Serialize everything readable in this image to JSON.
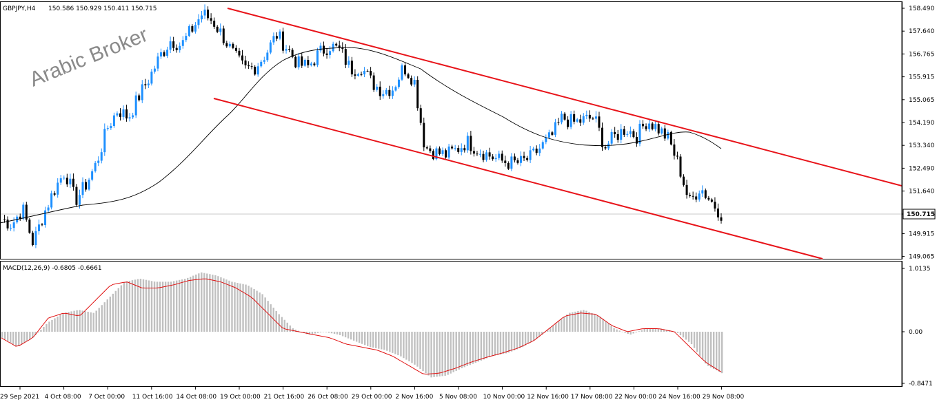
{
  "header": {
    "symbol": "GBPJPY,H4",
    "ohlc": "150.586 150.929 150.411 150.715"
  },
  "watermark": "Arabic Broker",
  "price_axis": {
    "labels": [
      "158.490",
      "157.640",
      "156.765",
      "155.915",
      "155.065",
      "154.190",
      "153.340",
      "152.490",
      "151.640",
      "150.715",
      "149.915",
      "149.065"
    ],
    "current_price": "150.715",
    "current_price_value": 150.715
  },
  "macd": {
    "label": "MACD(12,26,9) -0.6805 -0.6661",
    "axis_labels": [
      "1.0135",
      "0.00",
      "-0.8471"
    ]
  },
  "time_axis": {
    "labels": [
      "29 Sep 2021",
      "4 Oct 08:00",
      "7 Oct 00:00",
      "11 Oct 16:00",
      "14 Oct 08:00",
      "19 Oct 00:00",
      "21 Oct 16:00",
      "26 Oct 08:00",
      "29 Oct 00:00",
      "2 Nov 16:00",
      "5 Nov 08:00",
      "10 Nov 00:00",
      "12 Nov 16:00",
      "17 Nov 08:00",
      "22 Nov 00:00",
      "24 Nov 16:00",
      "29 Nov 08:00"
    ]
  },
  "colors": {
    "bull_candle": "#1e90ff",
    "bear_candle": "#000000",
    "channel": "#e8141a",
    "moving_average": "#000000",
    "histogram": "#c0c0c0",
    "signal": "#e01010",
    "grid_line": "#c8c8c8"
  },
  "chart_data": {
    "type": "candlestick",
    "price_range": [
      149.065,
      158.49
    ],
    "macd_range": [
      -0.8471,
      1.0135
    ],
    "path": [
      150.5,
      150.3,
      150.9,
      149.6,
      150.7,
      151.6,
      152.3,
      151.2,
      151.8,
      152.6,
      153.9,
      154.6,
      154.3,
      155.1,
      155.8,
      156.6,
      157.2,
      157.0,
      157.6,
      158.2,
      157.9,
      157.3,
      156.6,
      156.1,
      156.2,
      156.7,
      157.4,
      156.9,
      156.3,
      156.2,
      156.7,
      157.0,
      156.8,
      156.1,
      156.2,
      155.6,
      155.3,
      155.4,
      156.2,
      155.7,
      153.2,
      153.0,
      152.9,
      153.1,
      153.4,
      153.1,
      152.9,
      152.7,
      152.6,
      152.6,
      152.8,
      153.2,
      153.6,
      154.3,
      154.1,
      154.2,
      154.3,
      153.2,
      153.6,
      153.9,
      153.6,
      154.2,
      153.9,
      153.5,
      152.5,
      151.1,
      151.7,
      151.2,
      150.7
    ],
    "macd": [
      -0.1,
      -0.25,
      -0.1,
      0.15,
      0.3,
      0.35,
      0.3,
      0.55,
      0.8,
      0.85,
      0.8,
      0.8,
      0.85,
      0.95,
      0.9,
      0.8,
      0.75,
      0.6,
      0.3,
      0.05,
      -0.05,
      0.0,
      -0.05,
      -0.15,
      -0.25,
      -0.3,
      -0.4,
      -0.55,
      -0.75,
      -0.72,
      -0.6,
      -0.5,
      -0.4,
      -0.35,
      -0.25,
      -0.1,
      0.1,
      0.3,
      0.35,
      0.25,
      0.05,
      -0.05,
      0.05,
      0.05,
      0.0,
      -0.2,
      -0.55,
      -0.68
    ],
    "signal": [
      -0.1,
      -0.25,
      -0.1,
      0.22,
      0.3,
      0.25,
      0.5,
      0.75,
      0.8,
      0.7,
      0.7,
      0.75,
      0.82,
      0.85,
      0.8,
      0.7,
      0.55,
      0.3,
      0.05,
      0.0,
      -0.05,
      -0.1,
      -0.2,
      -0.25,
      -0.3,
      -0.4,
      -0.55,
      -0.7,
      -0.68,
      -0.6,
      -0.5,
      -0.42,
      -0.35,
      -0.27,
      -0.15,
      0.05,
      0.25,
      0.3,
      0.28,
      0.1,
      0.0,
      0.05,
      0.05,
      0.0,
      -0.25,
      -0.5,
      -0.66
    ]
  }
}
